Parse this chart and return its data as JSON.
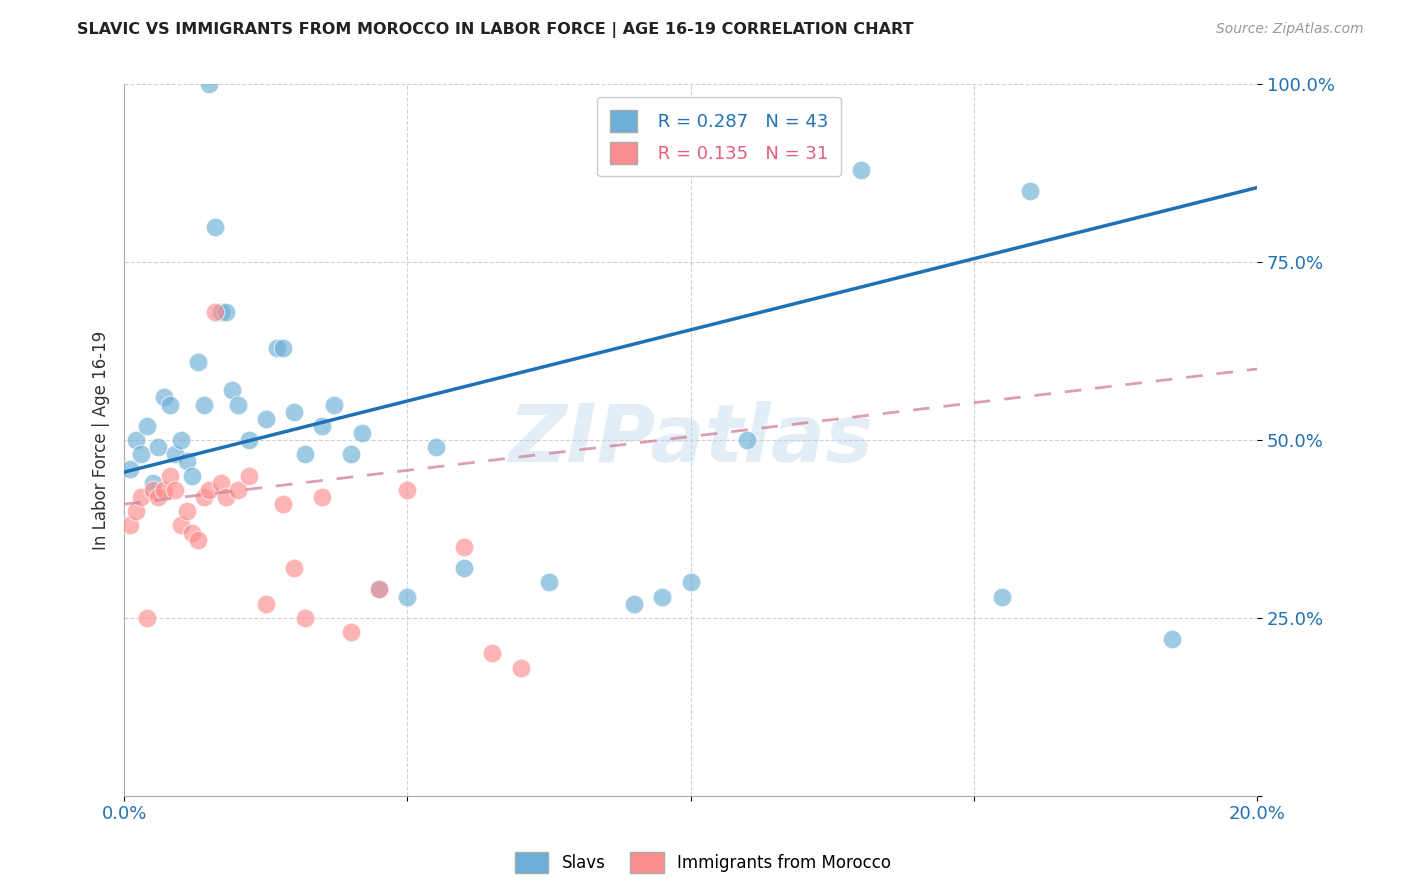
{
  "title": "SLAVIC VS IMMIGRANTS FROM MOROCCO IN LABOR FORCE | AGE 16-19 CORRELATION CHART",
  "source": "Source: ZipAtlas.com",
  "ylabel": "In Labor Force | Age 16-19",
  "x_min": 0.0,
  "x_max": 0.2,
  "y_min": 0.0,
  "y_max": 1.0,
  "x_ticks": [
    0.0,
    0.05,
    0.1,
    0.15,
    0.2
  ],
  "x_tick_labels": [
    "0.0%",
    "",
    "",
    "",
    "20.0%"
  ],
  "y_ticks": [
    0.0,
    0.25,
    0.5,
    0.75,
    1.0
  ],
  "y_tick_labels": [
    "",
    "25.0%",
    "50.0%",
    "75.0%",
    "100.0%"
  ],
  "slavs_color": "#6baed6",
  "morocco_color": "#fc8d8d",
  "slavs_line_color": "#2171b5",
  "morocco_line_color": "#d4879a",
  "legend_R_slavs": "R = 0.287",
  "legend_N_slavs": "N = 43",
  "legend_R_morocco": "R = 0.135",
  "legend_N_morocco": "N = 31",
  "watermark": "ZIPatlas",
  "slavs_line_x0": 0.0,
  "slavs_line_y0": 0.455,
  "slavs_line_x1": 0.2,
  "slavs_line_y1": 0.855,
  "morocco_line_x0": 0.0,
  "morocco_line_y0": 0.41,
  "morocco_line_x1": 0.2,
  "morocco_line_y1": 0.6,
  "slavs_x": [
    0.001,
    0.002,
    0.003,
    0.004,
    0.005,
    0.006,
    0.007,
    0.008,
    0.009,
    0.01,
    0.011,
    0.012,
    0.013,
    0.014,
    0.015,
    0.016,
    0.017,
    0.018,
    0.019,
    0.02,
    0.022,
    0.025,
    0.027,
    0.028,
    0.03,
    0.032,
    0.035,
    0.037,
    0.04,
    0.042,
    0.045,
    0.05,
    0.055,
    0.06,
    0.075,
    0.09,
    0.095,
    0.1,
    0.11,
    0.13,
    0.155,
    0.16,
    0.185
  ],
  "slavs_y": [
    0.46,
    0.5,
    0.48,
    0.52,
    0.44,
    0.49,
    0.56,
    0.55,
    0.48,
    0.5,
    0.47,
    0.45,
    0.61,
    0.55,
    1.0,
    0.8,
    0.68,
    0.68,
    0.57,
    0.55,
    0.5,
    0.53,
    0.63,
    0.63,
    0.54,
    0.48,
    0.52,
    0.55,
    0.48,
    0.51,
    0.29,
    0.28,
    0.49,
    0.32,
    0.3,
    0.27,
    0.28,
    0.3,
    0.5,
    0.88,
    0.28,
    0.85,
    0.22
  ],
  "morocco_x": [
    0.001,
    0.002,
    0.003,
    0.004,
    0.005,
    0.006,
    0.007,
    0.008,
    0.009,
    0.01,
    0.011,
    0.012,
    0.013,
    0.014,
    0.015,
    0.016,
    0.017,
    0.018,
    0.02,
    0.022,
    0.025,
    0.028,
    0.03,
    0.032,
    0.035,
    0.04,
    0.045,
    0.05,
    0.06,
    0.065,
    0.07
  ],
  "morocco_y": [
    0.38,
    0.4,
    0.42,
    0.25,
    0.43,
    0.42,
    0.43,
    0.45,
    0.43,
    0.38,
    0.4,
    0.37,
    0.36,
    0.42,
    0.43,
    0.68,
    0.44,
    0.42,
    0.43,
    0.45,
    0.27,
    0.41,
    0.32,
    0.25,
    0.42,
    0.23,
    0.29,
    0.43,
    0.35,
    0.2,
    0.18
  ]
}
